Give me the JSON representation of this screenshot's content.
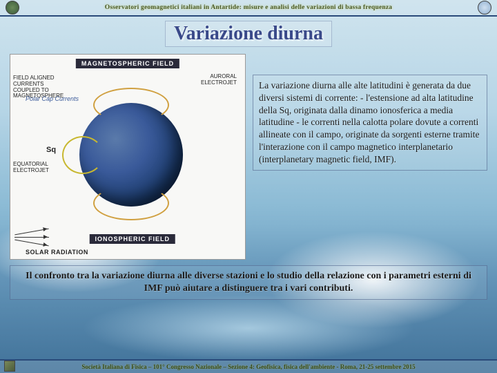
{
  "header": {
    "title": "Osservatori geomagnetici italiani in Antartide: misure e analisi delle variazioni di bassa frequenza"
  },
  "slide": {
    "title": "Variazione diurna"
  },
  "diagram": {
    "title_top": "MAGNETOSPHERIC FIELD",
    "title_bottom": "IONOSPHERIC FIELD",
    "label_field_aligned": "FIELD ALIGNED CURRENTS COUPLED TO MAGNETOSPHERE",
    "label_auroral": "AURORAL ELECTROJET",
    "label_polarcap": "Polar Cap Currents",
    "label_sq": "Sq",
    "label_equatorial": "EQUATORIAL ELECTROJET",
    "label_solar": "SOLAR RADIATION"
  },
  "textbox": {
    "content": "La variazione diurna alle alte latitudini è generata da due diversi sistemi di corrente:\n- l'estensione ad alta latitudine della Sq, originata dalla dinamo ionosferica a media latitudine\n- le correnti nella calotta polare dovute a correnti allineate con il campo, originate da sorgenti esterne tramite l'interazione con il campo magnetico interplanetario (interplanetary magnetic field, IMF)."
  },
  "bottom": {
    "content": "Il confronto tra la variazione diurna alle diverse stazioni e lo studio della relazione con i parametri esterni di IMF può aiutare a distinguere tra i vari contributi."
  },
  "footer": {
    "text": "Società Italiana di Fisica – 101° Congresso Nazionale – Sezione 4: Geofisica, fisica dell'ambiente  -  Roma, 21-25 settembre 2015"
  }
}
